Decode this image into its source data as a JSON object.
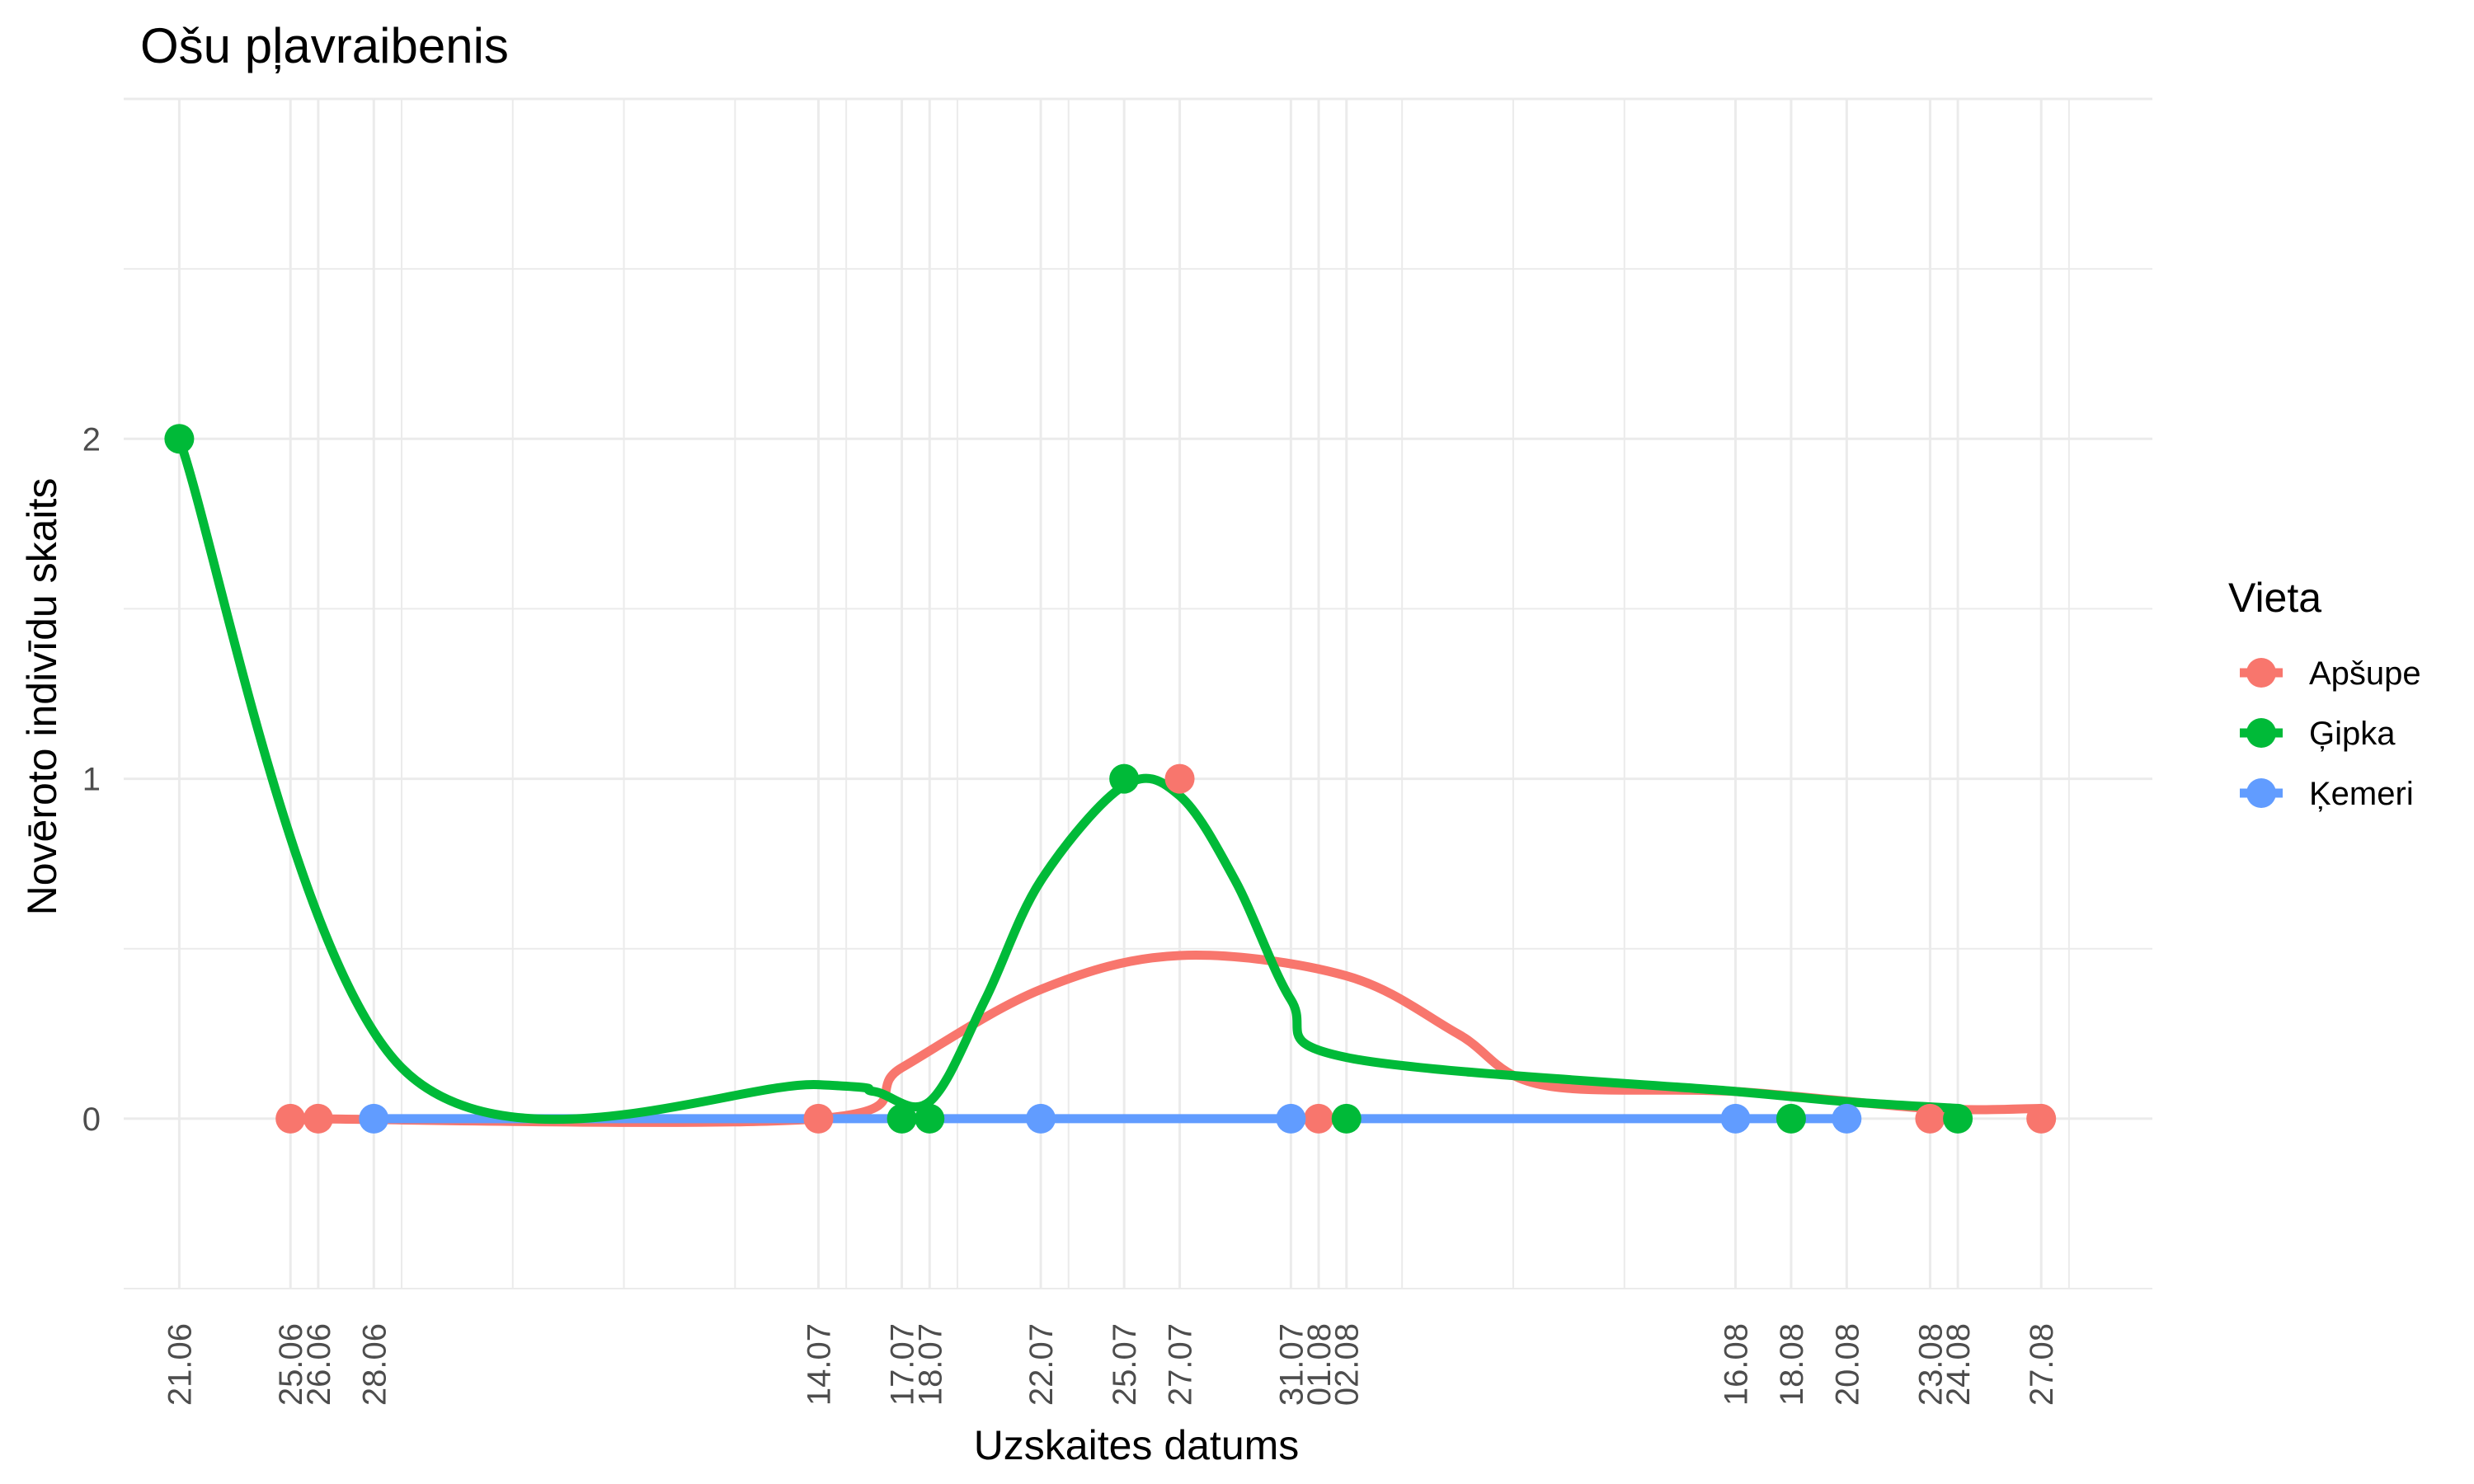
{
  "chart_data": {
    "type": "line",
    "title": "Ošu pļavraibenis",
    "xlabel": "Uzskaites datums",
    "ylabel": "Novēroto indivīdu skaits",
    "x_tick_labels": [
      "21.06",
      "25.06",
      "26.06",
      "28.06",
      "14.07",
      "17.07",
      "18.07",
      "22.07",
      "25.07",
      "27.07",
      "31.07",
      "01.08",
      "02.08",
      "16.08",
      "18.08",
      "20.08",
      "23.08",
      "24.08",
      "27.08"
    ],
    "x_range": [
      "2024-06-19",
      "2024-08-31"
    ],
    "y_ticks": [
      0,
      1,
      2
    ],
    "ylim": [
      -0.5,
      3
    ],
    "grid": true,
    "legend": {
      "title": "Vieta",
      "position": "right"
    },
    "series": [
      {
        "name": "Apšupe",
        "color": "#F8766D",
        "points": [
          {
            "x": "2024-06-25",
            "y": 0
          },
          {
            "x": "2024-06-26",
            "y": 0
          },
          {
            "x": "2024-07-14",
            "y": 0
          },
          {
            "x": "2024-07-27",
            "y": 1
          },
          {
            "x": "2024-08-01",
            "y": 0
          },
          {
            "x": "2024-08-23",
            "y": 0
          },
          {
            "x": "2024-08-27",
            "y": 0
          }
        ],
        "trend": [
          {
            "x": "2024-06-25",
            "y": 0
          },
          {
            "x": "2024-07-14",
            "y": 0
          },
          {
            "x": "2024-07-17",
            "y": 0.15
          },
          {
            "x": "2024-07-22",
            "y": 0.38
          },
          {
            "x": "2024-07-27",
            "y": 0.48
          },
          {
            "x": "2024-08-02",
            "y": 0.42
          },
          {
            "x": "2024-08-06",
            "y": 0.25
          },
          {
            "x": "2024-08-09",
            "y": 0.1
          },
          {
            "x": "2024-08-16",
            "y": 0.08
          },
          {
            "x": "2024-08-23",
            "y": 0.03
          },
          {
            "x": "2024-08-27",
            "y": 0.03
          }
        ]
      },
      {
        "name": "Ģipka",
        "color": "#00BA38",
        "points": [
          {
            "x": "2024-06-21",
            "y": 2
          },
          {
            "x": "2024-07-17",
            "y": 0
          },
          {
            "x": "2024-07-18",
            "y": 0
          },
          {
            "x": "2024-07-25",
            "y": 1
          },
          {
            "x": "2024-08-02",
            "y": 0
          },
          {
            "x": "2024-08-18",
            "y": 0
          },
          {
            "x": "2024-08-24",
            "y": 0
          }
        ],
        "trend": [
          {
            "x": "2024-06-21",
            "y": 2
          },
          {
            "x": "2024-06-29",
            "y": 0.15
          },
          {
            "x": "2024-07-14",
            "y": 0.1
          },
          {
            "x": "2024-07-16",
            "y": 0.08
          },
          {
            "x": "2024-07-18",
            "y": 0.05
          },
          {
            "x": "2024-07-20",
            "y": 0.35
          },
          {
            "x": "2024-07-22",
            "y": 0.7
          },
          {
            "x": "2024-07-25",
            "y": 0.98
          },
          {
            "x": "2024-07-27",
            "y": 0.95
          },
          {
            "x": "2024-07-29",
            "y": 0.7
          },
          {
            "x": "2024-07-31",
            "y": 0.35
          },
          {
            "x": "2024-08-02",
            "y": 0.18
          },
          {
            "x": "2024-08-16",
            "y": 0.08
          },
          {
            "x": "2024-08-20",
            "y": 0.05
          },
          {
            "x": "2024-08-24",
            "y": 0.03
          }
        ]
      },
      {
        "name": "Ķemeri",
        "color": "#619CFF",
        "points": [
          {
            "x": "2024-06-28",
            "y": 0
          },
          {
            "x": "2024-07-22",
            "y": 0
          },
          {
            "x": "2024-07-31",
            "y": 0
          },
          {
            "x": "2024-08-16",
            "y": 0
          },
          {
            "x": "2024-08-20",
            "y": 0
          }
        ],
        "trend": [
          {
            "x": "2024-06-28",
            "y": 0
          },
          {
            "x": "2024-08-20",
            "y": 0
          }
        ]
      }
    ]
  }
}
